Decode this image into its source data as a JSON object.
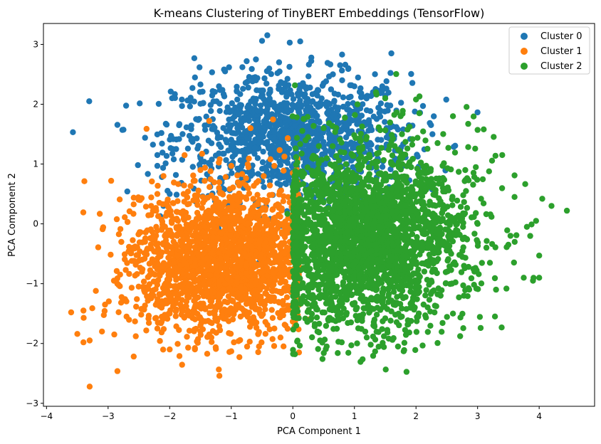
{
  "chart_data": {
    "type": "scatter",
    "title": "K-means Clustering of TinyBERT Embeddings (TensorFlow)",
    "xlabel": "PCA Component 1",
    "ylabel": "PCA Component 2",
    "xlim": [
      -4.05,
      4.9
    ],
    "ylim": [
      -3.05,
      3.35
    ],
    "xticks": [
      -4,
      -3,
      -2,
      -1,
      0,
      1,
      2,
      3,
      4
    ],
    "xtick_labels": [
      "−4",
      "−3",
      "−2",
      "−1",
      "0",
      "1",
      "2",
      "3",
      "4"
    ],
    "yticks": [
      -3,
      -2,
      -1,
      0,
      1,
      2,
      3
    ],
    "ytick_labels": [
      "−3",
      "−2",
      "−1",
      "0",
      "1",
      "2",
      "3"
    ],
    "grid": false,
    "legend_position": "top-right",
    "series": [
      {
        "name": "Cluster 0",
        "color": "#1f77b4",
        "points": [
          [
            -1.6,
            2.77
          ],
          [
            -0.5,
            3.06
          ],
          [
            -0.05,
            3.03
          ],
          [
            0.12,
            3.05
          ],
          [
            0.8,
            2.83
          ],
          [
            1.6,
            2.85
          ],
          [
            -2.4,
            1.44
          ],
          [
            -2.05,
            1.66
          ],
          [
            -1.8,
            1.97
          ],
          [
            -1.5,
            2.33
          ],
          [
            -1.1,
            2.55
          ],
          [
            -0.75,
            2.72
          ],
          [
            -0.25,
            2.52
          ],
          [
            0.3,
            2.78
          ],
          [
            0.65,
            2.5
          ],
          [
            1.3,
            2.2
          ],
          [
            1.45,
            2.22
          ],
          [
            0.9,
            2.6
          ],
          [
            -2.2,
            1.15
          ],
          [
            -2.2,
            0.97
          ],
          [
            -1.95,
            1.25
          ],
          [
            -1.65,
            1.4
          ],
          [
            -2.0,
            0.5
          ],
          [
            -2.1,
            0.3
          ],
          [
            -1.2,
            2.3
          ],
          [
            -0.6,
            2.4
          ],
          [
            -0.1,
            2.2
          ],
          [
            0.5,
            2.35
          ],
          [
            1.0,
            2.3
          ],
          [
            1.2,
            1.9
          ],
          [
            -0.3,
            1.4
          ],
          [
            0.2,
            1.5
          ],
          [
            0.6,
            1.45
          ],
          [
            -0.9,
            1.6
          ],
          [
            -1.3,
            1.75
          ],
          [
            -1.5,
            1.1
          ],
          [
            0.9,
            1.2
          ],
          [
            0.3,
            1.0
          ],
          [
            -0.5,
            0.8
          ],
          [
            -1.0,
            1.0
          ],
          [
            0.1,
            2.0
          ],
          [
            -0.2,
            1.8
          ]
        ],
        "blobs": [
          {
            "center": [
              0.0,
              1.45
            ],
            "spread": [
              0.95,
              0.52
            ],
            "count": 1200
          }
        ]
      },
      {
        "name": "Cluster 1",
        "color": "#ff7f0e",
        "points": [
          [
            -3.3,
            -2.72
          ],
          [
            -2.95,
            0.72
          ],
          [
            -3.6,
            -1.48
          ],
          [
            -3.5,
            -1.84
          ],
          [
            -3.4,
            -1.98
          ],
          [
            -3.3,
            -1.95
          ],
          [
            -3.4,
            -1.45
          ],
          [
            -3.1,
            -1.8
          ],
          [
            -2.9,
            -1.85
          ],
          [
            -2.55,
            -1.88
          ],
          [
            -2.2,
            -1.75
          ],
          [
            -2.0,
            -2.1
          ],
          [
            -1.7,
            -2.07
          ],
          [
            -1.0,
            -2.13
          ],
          [
            -0.7,
            -1.97
          ],
          [
            -0.55,
            -2.05
          ],
          [
            0.1,
            -2.15
          ],
          [
            -0.2,
            -1.9
          ],
          [
            -2.6,
            -0.4
          ],
          [
            -2.45,
            -0.8
          ],
          [
            -2.3,
            0.3
          ],
          [
            -2.1,
            0.8
          ],
          [
            -1.5,
            0.9
          ],
          [
            -1.0,
            0.97
          ],
          [
            -0.3,
            0.97
          ],
          [
            0.0,
            0.85
          ],
          [
            -2.2,
            0.5
          ],
          [
            -2.85,
            -1.0
          ],
          [
            -3.05,
            -1.35
          ],
          [
            -2.7,
            -1.55
          ],
          [
            -2.0,
            -1.5
          ],
          [
            -1.5,
            -1.7
          ],
          [
            -0.3,
            -1.75
          ],
          [
            0.25,
            -1.6
          ],
          [
            -1.2,
            0.6
          ],
          [
            -2.4,
            -0.3
          ]
        ],
        "blobs": [
          {
            "center": [
              -0.95,
              -0.55
            ],
            "spread": [
              0.72,
              0.6
            ],
            "count": 1700,
            "xmax": 0.1
          },
          {
            "center": [
              -1.8,
              -0.9
            ],
            "spread": [
              0.55,
              0.55
            ],
            "count": 300
          }
        ]
      },
      {
        "name": "Cluster 2",
        "color": "#2ca02c",
        "points": [
          [
            4.45,
            0.22
          ],
          [
            4.05,
            0.42
          ],
          [
            4.2,
            0.3
          ],
          [
            4.0,
            -0.53
          ],
          [
            4.0,
            -0.9
          ],
          [
            3.9,
            -0.95
          ],
          [
            3.75,
            -0.9
          ],
          [
            3.6,
            0.81
          ],
          [
            3.4,
            1.15
          ],
          [
            3.1,
            1.58
          ],
          [
            3.0,
            1.57
          ],
          [
            2.6,
            1.8
          ],
          [
            2.0,
            2.08
          ],
          [
            1.75,
            1.8
          ],
          [
            1.5,
            2.1
          ],
          [
            1.35,
            2.2
          ],
          [
            0.95,
            -2.03
          ],
          [
            0.55,
            -2.05
          ],
          [
            1.8,
            -2.13
          ],
          [
            3.05,
            -1.74
          ],
          [
            2.15,
            -1.53
          ],
          [
            2.6,
            -1.5
          ],
          [
            3.2,
            -0.65
          ],
          [
            3.5,
            -0.35
          ],
          [
            3.6,
            0.45
          ],
          [
            3.8,
            -0.05
          ],
          [
            3.95,
            0.05
          ],
          [
            2.8,
            0.9
          ],
          [
            2.35,
            1.35
          ],
          [
            1.2,
            -1.9
          ],
          [
            0.4,
            -1.8
          ],
          [
            0.2,
            -1.3
          ],
          [
            2.4,
            -1.2
          ],
          [
            3.3,
            -1.1
          ],
          [
            3.0,
            0.0
          ],
          [
            0.5,
            1.6
          ]
        ],
        "blobs": [
          {
            "center": [
              1.05,
              -0.25
            ],
            "spread": [
              0.72,
              0.72
            ],
            "count": 2200,
            "xmin": 0.0
          },
          {
            "center": [
              1.9,
              0.05
            ],
            "spread": [
              0.7,
              0.7
            ],
            "count": 450
          }
        ]
      }
    ]
  }
}
